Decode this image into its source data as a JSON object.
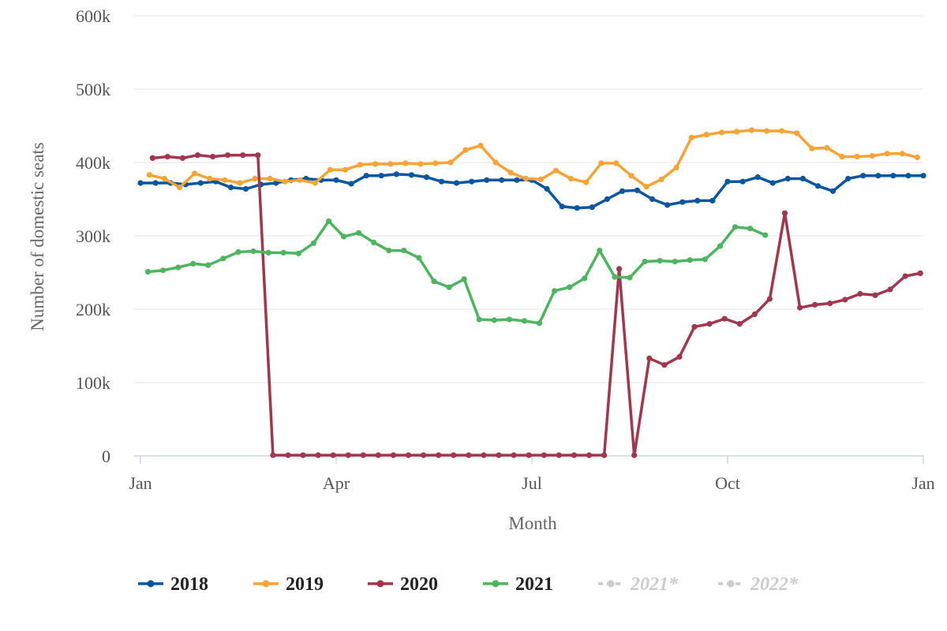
{
  "chart_data": {
    "type": "line",
    "title": "",
    "xlabel": "Month",
    "ylabel": "Number of domestic seats",
    "x_unit": "week of year (week 1 = first week of January)",
    "xlim": [
      1,
      53
    ],
    "ylim": [
      0,
      600000
    ],
    "y_ticks": [
      0,
      100000,
      200000,
      300000,
      400000,
      500000,
      600000
    ],
    "y_tick_labels": [
      "0",
      "100k",
      "200k",
      "300k",
      "400k",
      "500k",
      "600k"
    ],
    "x_ticks": [
      1,
      14,
      27,
      40,
      53
    ],
    "x_tick_labels": [
      "Jan",
      "Apr",
      "Jul",
      "Oct",
      "Jan"
    ],
    "grid": true,
    "legend_position": "bottom",
    "series": [
      {
        "name": "2018",
        "color": "#0a56a0",
        "visible": true,
        "x": [
          1,
          2,
          3,
          4,
          5,
          6,
          7,
          8,
          9,
          10,
          11,
          12,
          13,
          14,
          15,
          16,
          17,
          18,
          19,
          20,
          21,
          22,
          23,
          24,
          25,
          26,
          27,
          28,
          29,
          30,
          31,
          32,
          33,
          34,
          35,
          36,
          37,
          38,
          39,
          40,
          41,
          42,
          43,
          44,
          45,
          46,
          47,
          48,
          49,
          50,
          51,
          52,
          53
        ],
        "values": [
          372000,
          372000,
          372000,
          370000,
          372000,
          374000,
          366000,
          364000,
          370000,
          372000,
          376000,
          378000,
          376000,
          376000,
          371000,
          382000,
          382000,
          384000,
          383000,
          380000,
          374000,
          372000,
          374000,
          376000,
          376000,
          376000,
          376000,
          364000,
          340000,
          338000,
          339000,
          350000,
          361000,
          362000,
          350000,
          342000,
          346000,
          348000,
          348000,
          374000,
          374000,
          380000,
          372000,
          378000,
          378000,
          368000,
          361000,
          378000,
          382000,
          382000,
          382000,
          382000,
          382000
        ]
      },
      {
        "name": "2019",
        "color": "#f7a335",
        "visible": true,
        "x": [
          1.6,
          2.6,
          3.6,
          4.6,
          5.6,
          6.6,
          7.6,
          8.6,
          9.6,
          10.6,
          11.6,
          12.6,
          13.6,
          14.6,
          15.6,
          16.6,
          17.6,
          18.6,
          19.6,
          20.6,
          21.6,
          22.6,
          23.6,
          24.6,
          25.6,
          26.6,
          27.6,
          28.6,
          29.6,
          30.6,
          31.6,
          32.6,
          33.6,
          34.6,
          35.6,
          36.6,
          37.6,
          38.6,
          39.6,
          40.6,
          41.6,
          42.6,
          43.6,
          44.6,
          45.6,
          46.6,
          47.6,
          48.6,
          49.6,
          50.6,
          51.6,
          52.6
        ],
        "values": [
          383000,
          378000,
          366000,
          385000,
          378000,
          376000,
          372000,
          378000,
          378000,
          374000,
          376000,
          372000,
          390000,
          390000,
          397000,
          398000,
          398000,
          399000,
          398000,
          399000,
          400000,
          417000,
          423000,
          400000,
          386000,
          378000,
          377000,
          389000,
          378000,
          373000,
          399000,
          399000,
          382000,
          367000,
          377000,
          393000,
          434000,
          438000,
          441000,
          442000,
          444000,
          443000,
          443000,
          440000,
          419000,
          420000,
          408000,
          408000,
          409000,
          412000,
          412000,
          407000
        ]
      },
      {
        "name": "2020",
        "color": "#a3364c",
        "visible": true,
        "x": [
          1.8,
          2.8,
          3.8,
          4.8,
          5.8,
          6.8,
          7.8,
          8.8,
          9.8,
          10.8,
          11.8,
          12.8,
          13.8,
          14.8,
          15.8,
          16.8,
          17.8,
          18.8,
          19.8,
          20.8,
          21.8,
          22.8,
          23.8,
          24.8,
          25.8,
          26.8,
          27.8,
          28.8,
          29.8,
          30.8,
          31.8,
          32.8,
          33.8,
          34.8,
          35.8,
          36.8,
          37.8,
          38.8,
          39.8,
          40.8,
          41.8,
          42.8,
          43.8,
          44.8,
          45.8,
          46.8,
          47.8,
          48.8,
          49.8,
          50.8,
          51.8,
          52.8
        ],
        "values": [
          406000,
          408000,
          406000,
          410000,
          408000,
          410000,
          410000,
          410000,
          1000,
          1000,
          1000,
          1000,
          1000,
          1000,
          1000,
          1000,
          1000,
          1000,
          1000,
          1000,
          1000,
          1000,
          1000,
          1000,
          1000,
          1000,
          1000,
          1000,
          1000,
          1000,
          1000,
          255000,
          1000,
          133000,
          124000,
          135000,
          176000,
          180000,
          187000,
          180000,
          193000,
          214000,
          331000,
          202000,
          206000,
          208000,
          213000,
          221000,
          219000,
          227000,
          245000,
          249000
        ]
      },
      {
        "name": "2021",
        "color": "#4cb65e",
        "visible": true,
        "x": [
          1.5,
          2.5,
          3.5,
          4.5,
          5.5,
          6.5,
          7.5,
          8.5,
          9.5,
          10.5,
          11.5,
          12.5,
          13.5,
          14.5,
          15.5,
          16.5,
          17.5,
          18.5,
          19.5,
          20.5,
          21.5,
          22.5,
          23.5,
          24.5,
          25.5,
          26.5,
          27.5,
          28.5,
          29.5,
          30.5,
          31.5,
          32.5,
          33.5,
          34.5,
          35.5,
          36.5,
          37.5,
          38.5,
          39.5,
          40.5,
          41.5,
          42.5
        ],
        "values": [
          251000,
          253000,
          257000,
          262000,
          260000,
          269000,
          278000,
          279000,
          277000,
          277000,
          276000,
          290000,
          320000,
          299000,
          304000,
          291000,
          280000,
          280000,
          270000,
          238000,
          230000,
          241000,
          186000,
          185000,
          186000,
          184000,
          181000,
          225000,
          230000,
          242000,
          280000,
          244000,
          243000,
          265000,
          266000,
          265000,
          267000,
          268000,
          286000,
          312000,
          310000,
          301000
        ]
      },
      {
        "name": "2021*",
        "color": "#cccccc",
        "visible": false,
        "dashed": true
      },
      {
        "name": "2022*",
        "color": "#cccccc",
        "visible": false,
        "dashed": true
      }
    ]
  }
}
